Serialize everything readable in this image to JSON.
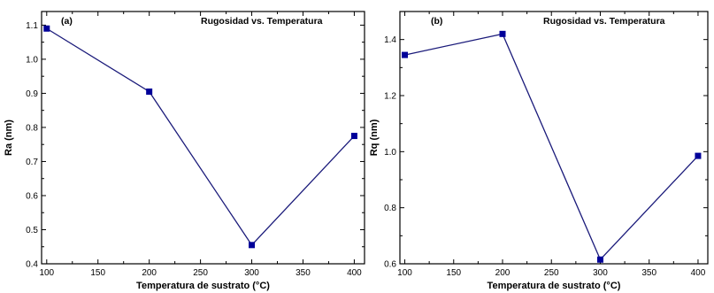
{
  "chart_data": [
    {
      "type": "line",
      "panel_label": "(a)",
      "title": "Rugosidad vs. Temperatura",
      "xlabel": "Temperatura de sustrato (°C)",
      "ylabel": "Ra (nm)",
      "x": [
        100,
        200,
        300,
        400
      ],
      "series": [
        {
          "values": [
            1.09,
            0.905,
            0.455,
            0.775
          ]
        }
      ],
      "xlim": [
        95,
        410
      ],
      "ylim": [
        0.4,
        1.14
      ],
      "xticks": [
        100,
        150,
        200,
        250,
        300,
        350,
        400
      ],
      "xtick_labels": [
        "100",
        "150",
        "200",
        "250",
        "300",
        "350",
        "400"
      ],
      "yticks": [
        0.4,
        0.5,
        0.6,
        0.7,
        0.8,
        0.9,
        1.0,
        1.1
      ],
      "ytick_labels": [
        "0.4",
        "0.5",
        "0.6",
        "0.7",
        "0.8",
        "0.9",
        "1.0",
        "1.1"
      ],
      "grid": false,
      "legend": "none",
      "line_color": "#1a1a7a",
      "marker_color": "#000099",
      "marker": "square"
    },
    {
      "type": "line",
      "panel_label": "(b)",
      "title": "Rugosidad vs. Temperatura",
      "xlabel": "Temperatura de sustrato (°C)",
      "ylabel": "Rq (nm)",
      "x": [
        100,
        200,
        300,
        400
      ],
      "series": [
        {
          "values": [
            1.345,
            1.42,
            0.615,
            0.985
          ]
        }
      ],
      "xlim": [
        95,
        410
      ],
      "ylim": [
        0.6,
        1.5
      ],
      "xticks": [
        100,
        150,
        200,
        250,
        300,
        350,
        400
      ],
      "xtick_labels": [
        "100",
        "150",
        "200",
        "250",
        "300",
        "350",
        "400"
      ],
      "yticks": [
        0.6,
        0.8,
        1.0,
        1.2,
        1.4
      ],
      "ytick_labels": [
        "0.6",
        "0.8",
        "1.0",
        "1.2",
        "1.4"
      ],
      "grid": false,
      "legend": "none",
      "line_color": "#1a1a7a",
      "marker_color": "#000099",
      "marker": "square"
    }
  ]
}
